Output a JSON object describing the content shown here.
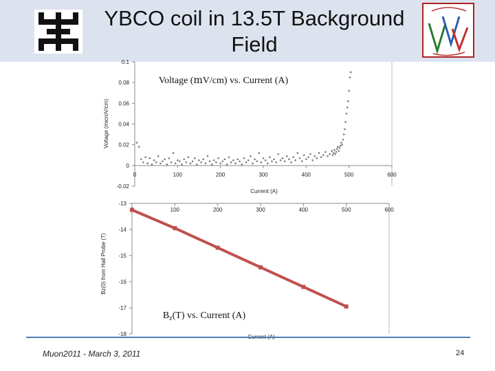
{
  "slide": {
    "title_line1": "YBCO coil in 13.5T Background",
    "title_line2": "Field",
    "footer_left": "Muon2011  -  March 3, 2011",
    "page_number": "24",
    "header_color": "#dde3ee",
    "footer_rule_color": "#4e7bb5",
    "logos": [
      "fermilab-logo",
      "muon-accelerator-program-logo"
    ]
  },
  "chart_data": [
    {
      "type": "scatter",
      "title_prefix": "Voltage (",
      "title_greek": "m",
      "title_suffix": "V/cm) vs. Current (A)",
      "xlabel": "Current (A)",
      "ylabel": "Voltage (microV/cm)",
      "xlim": [
        0,
        600
      ],
      "ylim": [
        -0.02,
        0.1
      ],
      "xticks": [
        "0",
        "100",
        "200",
        "300",
        "400",
        "500",
        "600"
      ],
      "yticks": [
        "0.1",
        "0.08",
        "0.06",
        "0.04",
        "0.02",
        "0",
        "-0.02"
      ],
      "marker_color": "#7a7a7a",
      "grid": false,
      "x": [
        5,
        10,
        15,
        20,
        25,
        30,
        35,
        40,
        45,
        50,
        55,
        60,
        65,
        70,
        75,
        80,
        85,
        90,
        95,
        100,
        105,
        110,
        115,
        120,
        125,
        130,
        135,
        140,
        145,
        150,
        155,
        160,
        165,
        170,
        175,
        180,
        185,
        190,
        195,
        200,
        205,
        210,
        215,
        220,
        225,
        230,
        235,
        240,
        245,
        250,
        255,
        260,
        265,
        270,
        275,
        280,
        285,
        290,
        295,
        300,
        305,
        310,
        315,
        320,
        325,
        330,
        335,
        340,
        345,
        350,
        355,
        360,
        365,
        370,
        375,
        380,
        385,
        390,
        395,
        400,
        405,
        410,
        415,
        420,
        425,
        430,
        435,
        440,
        445,
        450,
        455,
        460,
        462,
        464,
        466,
        468,
        470,
        472,
        474,
        476,
        478,
        480,
        482,
        484,
        486,
        488,
        490,
        492,
        494,
        496,
        498,
        500,
        502,
        504
      ],
      "y": [
        0.022,
        0.018,
        0.006,
        0.003,
        0.008,
        0.002,
        0.007,
        0.001,
        0.005,
        0.003,
        0.009,
        0.002,
        0.004,
        0.006,
        0.001,
        0.007,
        0.003,
        0.012,
        0.002,
        0.005,
        0.004,
        0.001,
        0.006,
        0.003,
        0.008,
        0.002,
        0.004,
        0.007,
        0.001,
        0.005,
        0.003,
        0.006,
        0.002,
        0.009,
        0.004,
        0.001,
        0.005,
        0.003,
        0.007,
        0.002,
        0.004,
        0.006,
        0.001,
        0.008,
        0.003,
        0.005,
        0.002,
        0.006,
        0.004,
        0.001,
        0.007,
        0.003,
        0.005,
        0.009,
        0.002,
        0.006,
        0.004,
        0.012,
        0.003,
        0.007,
        0.005,
        0.002,
        0.008,
        0.004,
        0.006,
        0.003,
        0.011,
        0.005,
        0.007,
        0.004,
        0.009,
        0.006,
        0.003,
        0.008,
        0.005,
        0.012,
        0.007,
        0.004,
        0.01,
        0.006,
        0.008,
        0.011,
        0.005,
        0.009,
        0.007,
        0.012,
        0.008,
        0.01,
        0.013,
        0.009,
        0.011,
        0.014,
        0.01,
        0.012,
        0.015,
        0.011,
        0.013,
        0.016,
        0.018,
        0.014,
        0.017,
        0.019,
        0.022,
        0.02,
        0.025,
        0.03,
        0.035,
        0.042,
        0.05,
        0.056,
        0.062,
        0.072,
        0.085,
        0.09
      ]
    },
    {
      "type": "line",
      "title_main": "B",
      "title_sub": "z",
      "title_suffix": "(T) vs. Current (A)",
      "xlabel": "Current (A)",
      "ylabel": "Bz(0) from Hall Probe (T)",
      "xlim": [
        0,
        600
      ],
      "ylim": [
        -18,
        -13
      ],
      "xticks": [
        "0",
        "100",
        "200",
        "300",
        "400",
        "500",
        "600"
      ],
      "yticks": [
        "-13",
        "-14",
        "-15",
        "-16",
        "-17",
        "-18"
      ],
      "line_color": "#c0504d",
      "grid": false,
      "x": [
        0,
        100,
        200,
        300,
        400,
        500
      ],
      "y": [
        -13.25,
        -13.95,
        -14.7,
        -15.45,
        -16.2,
        -16.95
      ]
    }
  ]
}
